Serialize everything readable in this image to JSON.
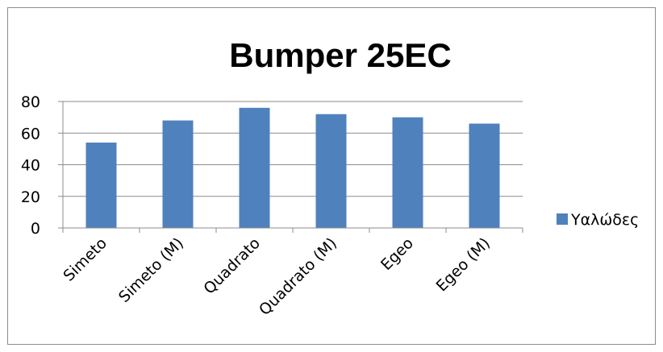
{
  "chart_data": {
    "type": "bar",
    "title": "Bumper 25EC",
    "categories": [
      "Simeto",
      "Simeto (M)",
      "Quadrato",
      "Quadrato (M)",
      "Egeo",
      "Egeo (M)"
    ],
    "series": [
      {
        "name": "Υαλώδες",
        "values": [
          54,
          68,
          76,
          72,
          70,
          66
        ],
        "color": "#4f81bd"
      }
    ],
    "ylim": [
      0,
      80
    ],
    "yticks": [
      0,
      20,
      40,
      60,
      80
    ],
    "grid": true,
    "legend_position": "right"
  }
}
